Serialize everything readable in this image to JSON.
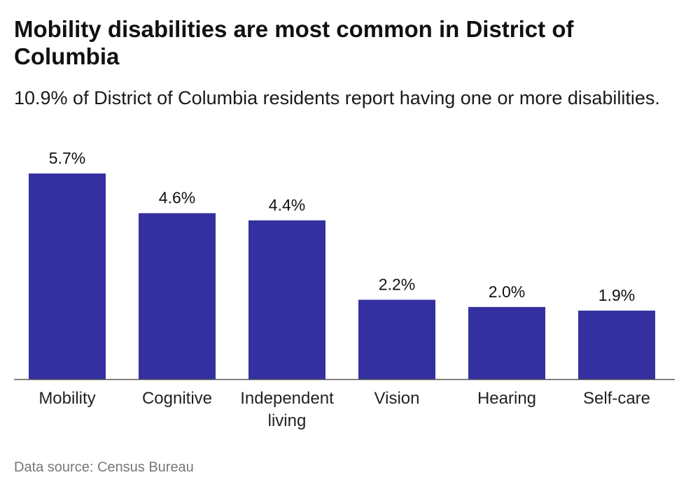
{
  "header": {
    "title": "Mobility disabilities are most common in District of Columbia",
    "subtitle": "10.9% of District of Columbia residents report having one or more disabilities."
  },
  "footer": {
    "source": "Data source: Census Bureau"
  },
  "chart_data": {
    "type": "bar",
    "title": "Mobility disabilities are most common in District of Columbia",
    "subtitle": "10.9% of District of Columbia residents report having one or more disabilities.",
    "categories": [
      "Mobility",
      "Cognitive",
      "Independent living",
      "Vision",
      "Hearing",
      "Self-care"
    ],
    "values": [
      5.7,
      4.6,
      4.4,
      2.2,
      2.0,
      1.9
    ],
    "value_labels": [
      "5.7%",
      "4.6%",
      "4.4%",
      "2.2%",
      "2.0%",
      "1.9%"
    ],
    "unit": "%",
    "xlabel": "",
    "ylabel": "",
    "ylim": [
      0,
      5.7
    ],
    "grid": false,
    "legend": "none",
    "bar_color": "#3430a0",
    "axis_color": "#555555"
  }
}
